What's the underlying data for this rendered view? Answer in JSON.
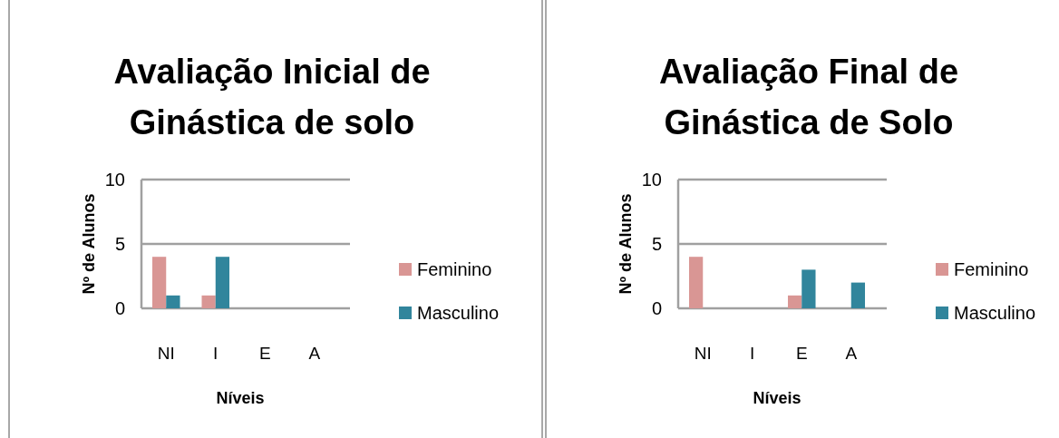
{
  "chart_data": [
    {
      "type": "bar",
      "title": "Avaliação Inicial de\nGinástica de solo",
      "xlabel": "Níveis",
      "ylabel": "Nº de Alunos",
      "categories": [
        "NI",
        "I",
        "E",
        "A"
      ],
      "series": [
        {
          "name": "Feminino",
          "color": "#d99694",
          "values": [
            4,
            1,
            0,
            0
          ]
        },
        {
          "name": "Masculino",
          "color": "#31859c",
          "values": [
            1,
            4,
            0,
            0
          ]
        }
      ],
      "ylim": [
        0,
        10
      ],
      "yticks": [
        0,
        5,
        10
      ],
      "grid": "y",
      "legend": "right"
    },
    {
      "type": "bar",
      "title": "Avaliação Final de\nGinástica de Solo",
      "xlabel": "Níveis",
      "ylabel": "Nº de Alunos",
      "categories": [
        "NI",
        "I",
        "E",
        "A"
      ],
      "series": [
        {
          "name": "Feminino",
          "color": "#d99694",
          "values": [
            4,
            0,
            1,
            0
          ]
        },
        {
          "name": "Masculino",
          "color": "#31859c",
          "values": [
            0,
            0,
            3,
            2
          ]
        }
      ],
      "ylim": [
        0,
        10
      ],
      "yticks": [
        0,
        5,
        10
      ],
      "grid": "y",
      "legend": "right"
    }
  ]
}
